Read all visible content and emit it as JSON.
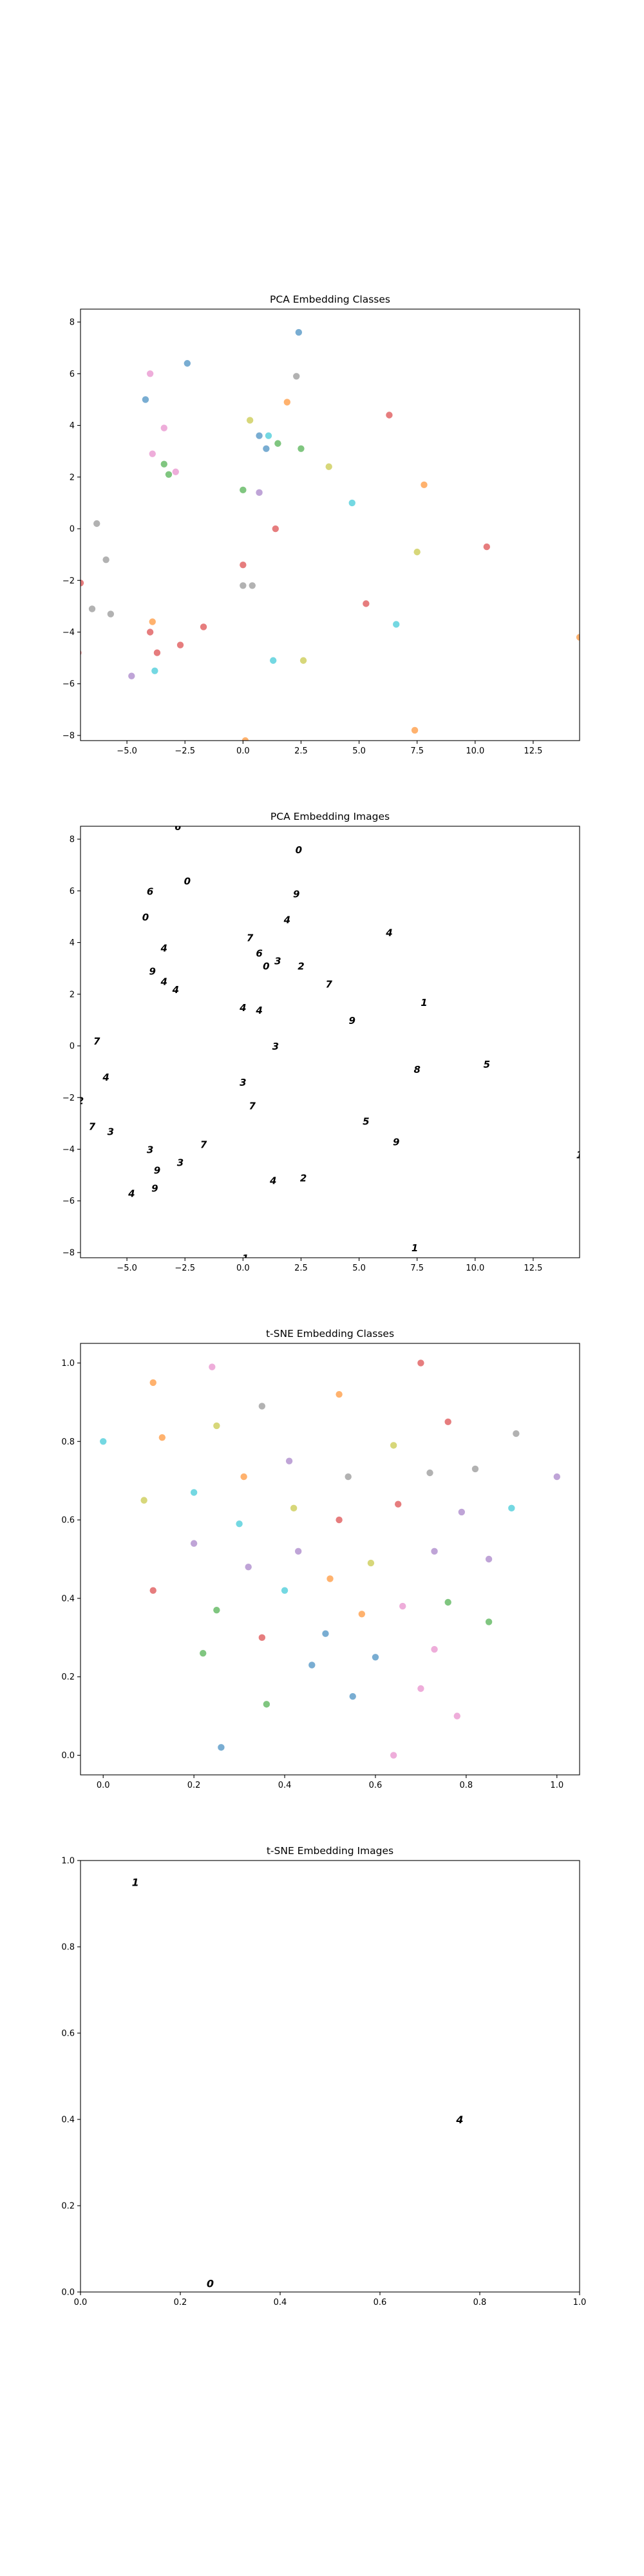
{
  "colors": {
    "palette": [
      "#1f77b4",
      "#ff7f0e",
      "#2ca02c",
      "#d62728",
      "#9467bd",
      "#8c564b",
      "#e377c2",
      "#7f7f7f",
      "#bcbd22",
      "#17becf"
    ]
  },
  "chart_data": [
    {
      "type": "scatter",
      "title": "PCA Embedding Classes",
      "xlabel": "",
      "ylabel": "",
      "xlim": [
        -7.0,
        14.5
      ],
      "ylim": [
        -8.2,
        8.5
      ],
      "xticks": [
        -5.0,
        -2.5,
        0.0,
        2.5,
        5.0,
        7.5,
        10.0,
        12.5
      ],
      "xtick_labels": [
        "−5.0",
        "−2.5",
        "0.0",
        "2.5",
        "5.0",
        "7.5",
        "10.0",
        "12.5"
      ],
      "yticks": [
        -8,
        -6,
        -4,
        -2,
        0,
        2,
        4,
        6,
        8
      ],
      "ytick_labels": [
        "−8",
        "−6",
        "−4",
        "−2",
        "0",
        "2",
        "4",
        "6",
        "8"
      ],
      "grid": false,
      "points": [
        {
          "x": 2.4,
          "y": 7.6,
          "c": 0
        },
        {
          "x": -2.4,
          "y": 6.4,
          "c": 0
        },
        {
          "x": -4.2,
          "y": 5.0,
          "c": 0
        },
        {
          "x": 0.7,
          "y": 3.6,
          "c": 0
        },
        {
          "x": 1.1,
          "y": 3.6,
          "c": 9
        },
        {
          "x": 1.0,
          "y": 3.1,
          "c": 0
        },
        {
          "x": 4.7,
          "y": 1.0,
          "c": 9
        },
        {
          "x": 6.6,
          "y": -3.7,
          "c": 9
        },
        {
          "x": 1.3,
          "y": -5.1,
          "c": 9
        },
        {
          "x": -3.8,
          "y": -5.5,
          "c": 9
        },
        {
          "x": -4.8,
          "y": -5.7,
          "c": 4
        },
        {
          "x": 6.3,
          "y": 4.4,
          "c": 3
        },
        {
          "x": 10.5,
          "y": -0.7,
          "c": 3
        },
        {
          "x": 1.4,
          "y": 0.0,
          "c": 3
        },
        {
          "x": 0.0,
          "y": -1.4,
          "c": 3
        },
        {
          "x": 5.3,
          "y": -2.9,
          "c": 3
        },
        {
          "x": -1.7,
          "y": -3.8,
          "c": 3
        },
        {
          "x": -4.0,
          "y": -4.0,
          "c": 3
        },
        {
          "x": -2.7,
          "y": -4.5,
          "c": 3
        },
        {
          "x": -3.7,
          "y": -4.8,
          "c": 3
        },
        {
          "x": -7.0,
          "y": -2.1,
          "c": 3
        },
        {
          "x": -7.1,
          "y": -4.8,
          "c": 3
        },
        {
          "x": 1.9,
          "y": 4.9,
          "c": 1
        },
        {
          "x": 7.8,
          "y": 1.7,
          "c": 1
        },
        {
          "x": -3.9,
          "y": -3.6,
          "c": 1
        },
        {
          "x": 7.4,
          "y": -7.8,
          "c": 1
        },
        {
          "x": 0.1,
          "y": -8.2,
          "c": 1
        },
        {
          "x": 14.5,
          "y": -4.2,
          "c": 1
        },
        {
          "x": 0.3,
          "y": 4.2,
          "c": 8
        },
        {
          "x": 3.7,
          "y": 2.4,
          "c": 8
        },
        {
          "x": 7.5,
          "y": -0.9,
          "c": 8
        },
        {
          "x": 2.6,
          "y": -5.1,
          "c": 8
        },
        {
          "x": 1.5,
          "y": 3.3,
          "c": 2
        },
        {
          "x": 2.5,
          "y": 3.1,
          "c": 2
        },
        {
          "x": -3.4,
          "y": 2.5,
          "c": 2
        },
        {
          "x": -3.2,
          "y": 2.1,
          "c": 2
        },
        {
          "x": 0.0,
          "y": 1.5,
          "c": 2
        },
        {
          "x": -4.0,
          "y": 6.0,
          "c": 6
        },
        {
          "x": -3.4,
          "y": 3.9,
          "c": 6
        },
        {
          "x": -3.9,
          "y": 2.9,
          "c": 6
        },
        {
          "x": -2.9,
          "y": 2.2,
          "c": 6
        },
        {
          "x": 2.3,
          "y": 5.9,
          "c": 7
        },
        {
          "x": 0.7,
          "y": 1.4,
          "c": 4
        },
        {
          "x": -6.3,
          "y": 0.2,
          "c": 7
        },
        {
          "x": -5.9,
          "y": -1.2,
          "c": 7
        },
        {
          "x": 0.0,
          "y": -2.2,
          "c": 7
        },
        {
          "x": 0.4,
          "y": -2.2,
          "c": 7
        },
        {
          "x": -6.5,
          "y": -3.1,
          "c": 7
        },
        {
          "x": -5.7,
          "y": -3.3,
          "c": 7
        }
      ]
    },
    {
      "type": "scatter",
      "title": "PCA Embedding Images",
      "xlabel": "",
      "ylabel": "",
      "xlim": [
        -7.0,
        14.5
      ],
      "ylim": [
        -8.2,
        8.5
      ],
      "xticks": [
        -5.0,
        -2.5,
        0.0,
        2.5,
        5.0,
        7.5,
        10.0,
        12.5
      ],
      "xtick_labels": [
        "−5.0",
        "−2.5",
        "0.0",
        "2.5",
        "5.0",
        "7.5",
        "10.0",
        "12.5"
      ],
      "yticks": [
        -8,
        -6,
        -4,
        -2,
        0,
        2,
        4,
        6,
        8
      ],
      "ytick_labels": [
        "−8",
        "−6",
        "−4",
        "−2",
        "0",
        "2",
        "4",
        "6",
        "8"
      ],
      "grid": false,
      "points": [
        {
          "x": -2.8,
          "y": 8.5,
          "g": "6"
        },
        {
          "x": 2.4,
          "y": 7.6,
          "g": "0"
        },
        {
          "x": -2.4,
          "y": 6.4,
          "g": "0"
        },
        {
          "x": -4.0,
          "y": 6.0,
          "g": "6"
        },
        {
          "x": 2.3,
          "y": 5.9,
          "g": "9"
        },
        {
          "x": -4.2,
          "y": 5.0,
          "g": "0"
        },
        {
          "x": 1.9,
          "y": 4.9,
          "g": "4"
        },
        {
          "x": 6.3,
          "y": 4.4,
          "g": "4"
        },
        {
          "x": 0.3,
          "y": 4.2,
          "g": "7"
        },
        {
          "x": -3.4,
          "y": 3.8,
          "g": "4"
        },
        {
          "x": 0.7,
          "y": 3.6,
          "g": "6"
        },
        {
          "x": 1.5,
          "y": 3.3,
          "g": "3"
        },
        {
          "x": 2.5,
          "y": 3.1,
          "g": "2"
        },
        {
          "x": 1.0,
          "y": 3.1,
          "g": "0"
        },
        {
          "x": -3.9,
          "y": 2.9,
          "g": "9"
        },
        {
          "x": -3.4,
          "y": 2.5,
          "g": "4"
        },
        {
          "x": -2.9,
          "y": 2.2,
          "g": "4"
        },
        {
          "x": 3.7,
          "y": 2.4,
          "g": "7"
        },
        {
          "x": 7.8,
          "y": 1.7,
          "g": "1"
        },
        {
          "x": 0.0,
          "y": 1.5,
          "g": "4"
        },
        {
          "x": 0.7,
          "y": 1.4,
          "g": "4"
        },
        {
          "x": 4.7,
          "y": 1.0,
          "g": "9"
        },
        {
          "x": -6.3,
          "y": 0.2,
          "g": "7"
        },
        {
          "x": 1.4,
          "y": 0.0,
          "g": "3"
        },
        {
          "x": 10.5,
          "y": -0.7,
          "g": "5"
        },
        {
          "x": 7.5,
          "y": -0.9,
          "g": "8"
        },
        {
          "x": -5.9,
          "y": -1.2,
          "g": "4"
        },
        {
          "x": 0.0,
          "y": -1.4,
          "g": "3"
        },
        {
          "x": -7.0,
          "y": -2.1,
          "g": "2"
        },
        {
          "x": 0.4,
          "y": -2.3,
          "g": "7"
        },
        {
          "x": 5.3,
          "y": -2.9,
          "g": "5"
        },
        {
          "x": -6.5,
          "y": -3.1,
          "g": "7"
        },
        {
          "x": -5.7,
          "y": -3.3,
          "g": "3"
        },
        {
          "x": -1.7,
          "y": -3.8,
          "g": "7"
        },
        {
          "x": 6.6,
          "y": -3.7,
          "g": "9"
        },
        {
          "x": -4.0,
          "y": -4.0,
          "g": "3"
        },
        {
          "x": -2.7,
          "y": -4.5,
          "g": "3"
        },
        {
          "x": -3.7,
          "y": -4.8,
          "g": "9"
        },
        {
          "x": -7.1,
          "y": -4.8,
          "g": "4"
        },
        {
          "x": 14.5,
          "y": -4.2,
          "g": "1"
        },
        {
          "x": 1.3,
          "y": -5.2,
          "g": "4"
        },
        {
          "x": 2.6,
          "y": -5.1,
          "g": "2"
        },
        {
          "x": -3.8,
          "y": -5.5,
          "g": "9"
        },
        {
          "x": -4.8,
          "y": -5.7,
          "g": "4"
        },
        {
          "x": 7.4,
          "y": -7.8,
          "g": "1"
        },
        {
          "x": 0.1,
          "y": -8.2,
          "g": "1"
        }
      ]
    },
    {
      "type": "scatter",
      "title": "t-SNE Embedding Classes",
      "xlabel": "",
      "ylabel": "",
      "xlim": [
        -0.05,
        1.05
      ],
      "ylim": [
        -0.05,
        1.05
      ],
      "xticks": [
        0.0,
        0.2,
        0.4,
        0.6,
        0.8,
        1.0
      ],
      "xtick_labels": [
        "0.0",
        "0.2",
        "0.4",
        "0.6",
        "0.8",
        "1.0"
      ],
      "yticks": [
        0.0,
        0.2,
        0.4,
        0.6,
        0.8,
        1.0
      ],
      "ytick_labels": [
        "0.0",
        "0.2",
        "0.4",
        "0.6",
        "0.8",
        "1.0"
      ],
      "grid": false,
      "points": [
        {
          "x": 0.24,
          "y": 0.99,
          "c": 6
        },
        {
          "x": 0.7,
          "y": 1.0,
          "c": 3
        },
        {
          "x": 0.11,
          "y": 0.95,
          "c": 1
        },
        {
          "x": 0.52,
          "y": 0.92,
          "c": 1
        },
        {
          "x": 0.35,
          "y": 0.89,
          "c": 7
        },
        {
          "x": 0.76,
          "y": 0.85,
          "c": 3
        },
        {
          "x": 0.25,
          "y": 0.84,
          "c": 8
        },
        {
          "x": 0.91,
          "y": 0.82,
          "c": 7
        },
        {
          "x": 0.0,
          "y": 0.8,
          "c": 9
        },
        {
          "x": 0.13,
          "y": 0.81,
          "c": 1
        },
        {
          "x": 0.64,
          "y": 0.79,
          "c": 8
        },
        {
          "x": 0.41,
          "y": 0.75,
          "c": 4
        },
        {
          "x": 0.82,
          "y": 0.73,
          "c": 7
        },
        {
          "x": 0.72,
          "y": 0.72,
          "c": 7
        },
        {
          "x": 0.31,
          "y": 0.71,
          "c": 1
        },
        {
          "x": 0.54,
          "y": 0.71,
          "c": 7
        },
        {
          "x": 1.0,
          "y": 0.71,
          "c": 4
        },
        {
          "x": 0.2,
          "y": 0.67,
          "c": 9
        },
        {
          "x": 0.09,
          "y": 0.65,
          "c": 8
        },
        {
          "x": 0.65,
          "y": 0.64,
          "c": 3
        },
        {
          "x": 0.42,
          "y": 0.63,
          "c": 8
        },
        {
          "x": 0.79,
          "y": 0.62,
          "c": 4
        },
        {
          "x": 0.9,
          "y": 0.63,
          "c": 9
        },
        {
          "x": 0.52,
          "y": 0.6,
          "c": 3
        },
        {
          "x": 0.3,
          "y": 0.59,
          "c": 9
        },
        {
          "x": 0.2,
          "y": 0.54,
          "c": 4
        },
        {
          "x": 0.43,
          "y": 0.52,
          "c": 4
        },
        {
          "x": 0.73,
          "y": 0.52,
          "c": 4
        },
        {
          "x": 0.85,
          "y": 0.5,
          "c": 4
        },
        {
          "x": 0.59,
          "y": 0.49,
          "c": 8
        },
        {
          "x": 0.32,
          "y": 0.48,
          "c": 4
        },
        {
          "x": 0.5,
          "y": 0.45,
          "c": 1
        },
        {
          "x": 0.11,
          "y": 0.42,
          "c": 3
        },
        {
          "x": 0.4,
          "y": 0.42,
          "c": 9
        },
        {
          "x": 0.66,
          "y": 0.38,
          "c": 6
        },
        {
          "x": 0.76,
          "y": 0.39,
          "c": 2
        },
        {
          "x": 0.25,
          "y": 0.37,
          "c": 2
        },
        {
          "x": 0.57,
          "y": 0.36,
          "c": 1
        },
        {
          "x": 0.85,
          "y": 0.34,
          "c": 2
        },
        {
          "x": 0.49,
          "y": 0.31,
          "c": 0
        },
        {
          "x": 0.35,
          "y": 0.3,
          "c": 3
        },
        {
          "x": 0.73,
          "y": 0.27,
          "c": 6
        },
        {
          "x": 0.22,
          "y": 0.26,
          "c": 2
        },
        {
          "x": 0.6,
          "y": 0.25,
          "c": 0
        },
        {
          "x": 0.46,
          "y": 0.23,
          "c": 0
        },
        {
          "x": 0.7,
          "y": 0.17,
          "c": 6
        },
        {
          "x": 0.55,
          "y": 0.15,
          "c": 0
        },
        {
          "x": 0.36,
          "y": 0.13,
          "c": 2
        },
        {
          "x": 0.78,
          "y": 0.1,
          "c": 6
        },
        {
          "x": 0.26,
          "y": 0.02,
          "c": 0
        },
        {
          "x": 0.64,
          "y": 0.0,
          "c": 6
        }
      ]
    },
    {
      "type": "scatter",
      "title": "t-SNE Embedding Images",
      "xlabel": "",
      "ylabel": "",
      "xlim": [
        0.0,
        1.0
      ],
      "ylim": [
        0.0,
        1.0
      ],
      "xticks": [
        0.0,
        0.2,
        0.4,
        0.6,
        0.8,
        1.0
      ],
      "xtick_labels": [
        "0.0",
        "0.2",
        "0.4",
        "0.6",
        "0.8",
        "1.0"
      ],
      "yticks": [
        0.0,
        0.2,
        0.4,
        0.6,
        0.8,
        1.0
      ],
      "ytick_labels": [
        "0.0",
        "0.2",
        "0.4",
        "0.6",
        "0.8",
        "1.0"
      ],
      "grid": false,
      "points": [
        {
          "x": 0.11,
          "y": 0.95,
          "g": "1"
        },
        {
          "x": 0.76,
          "y": 0.4,
          "g": "4"
        },
        {
          "x": 0.26,
          "y": 0.02,
          "g": "0"
        }
      ]
    }
  ]
}
